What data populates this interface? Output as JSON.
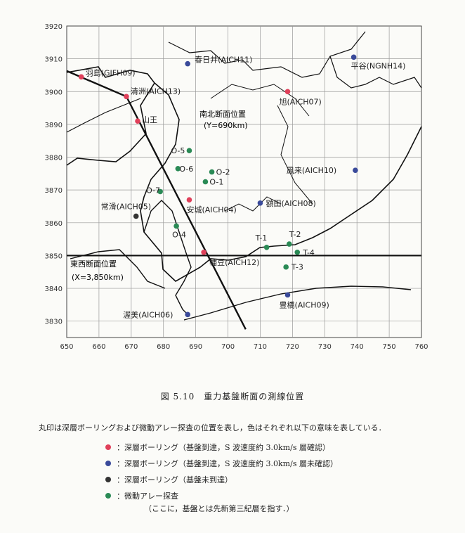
{
  "figure": {
    "caption": "図 5.10　重力基盤断面の測線位置",
    "axis": {
      "x_ticks": [
        "650",
        "660",
        "670",
        "680",
        "690",
        "700",
        "710",
        "720",
        "730",
        "740",
        "750",
        "760"
      ],
      "y_ticks": [
        "3920",
        "3910",
        "3900",
        "3890",
        "3880",
        "3870",
        "3860",
        "3850",
        "3840",
        "3830"
      ]
    },
    "sections": {
      "ns_label_1": "南北断面位置",
      "ns_label_2": "(Y=690km)",
      "ew_label_1": "東西断面位置",
      "ew_label_2": "(X=3,850km)"
    },
    "points": [
      {
        "label": "羽島(GIFH09)",
        "x": 654.5,
        "y": 3904.5,
        "color": "#e0405a"
      },
      {
        "label": "清洲(AICH13)",
        "x": 668.5,
        "y": 3898.5,
        "color": "#e0405a"
      },
      {
        "label": "山王",
        "x": 672.0,
        "y": 3891.0,
        "color": "#e0405a"
      },
      {
        "label": "旭(AICH07)",
        "x": 718.5,
        "y": 3900.0,
        "color": "#e0405a"
      },
      {
        "label": "安城(AICH04)",
        "x": 688.0,
        "y": 3867.0,
        "color": "#e0405a"
      },
      {
        "label": "幡豆(AICH12)",
        "x": 692.5,
        "y": 3851.0,
        "color": "#e0405a"
      },
      {
        "label": "春日井(AICH11)",
        "x": 687.5,
        "y": 3908.5,
        "color": "#3a4a9a"
      },
      {
        "label": "平谷(NGNH14)",
        "x": 739.0,
        "y": 3910.5,
        "color": "#3a4a9a"
      },
      {
        "label": "鳳来(AICH10)",
        "x": 739.5,
        "y": 3876.0,
        "color": "#3a4a9a"
      },
      {
        "label": "額田(AICH08)",
        "x": 710.0,
        "y": 3866.0,
        "color": "#3a4a9a"
      },
      {
        "label": "豊橋(AICH09)",
        "x": 718.5,
        "y": 3838.0,
        "color": "#3a4a9a"
      },
      {
        "label": "渥美(AICH06)",
        "x": 687.5,
        "y": 3832.0,
        "color": "#3a4a9a"
      },
      {
        "label": "常滑(AICH05)",
        "x": 671.5,
        "y": 3862.0,
        "color": "#333333"
      },
      {
        "label": "O-5",
        "x": 688.0,
        "y": 3882.0,
        "color": "#2a8a55"
      },
      {
        "label": "O-6",
        "x": 684.5,
        "y": 3876.5,
        "color": "#2a8a55"
      },
      {
        "label": "O-2",
        "x": 695.0,
        "y": 3875.5,
        "color": "#2a8a55"
      },
      {
        "label": "O-1",
        "x": 693.0,
        "y": 3872.5,
        "color": "#2a8a55"
      },
      {
        "label": "O-7",
        "x": 679.0,
        "y": 3869.5,
        "color": "#2a8a55"
      },
      {
        "label": "O-4",
        "x": 684.0,
        "y": 3859.0,
        "color": "#2a8a55"
      },
      {
        "label": "T-1",
        "x": 712.0,
        "y": 3852.5,
        "color": "#2a8a55"
      },
      {
        "label": "T-2",
        "x": 719.0,
        "y": 3853.5,
        "color": "#2a8a55"
      },
      {
        "label": "T-4",
        "x": 721.5,
        "y": 3851.0,
        "color": "#2a8a55"
      },
      {
        "label": "T-3",
        "x": 718.0,
        "y": 3846.5,
        "color": "#2a8a55"
      }
    ]
  },
  "text": {
    "description": "丸印は深層ボーリングおよび微動アレー探査の位置を表し，色はそれぞれ以下の意味を表している．",
    "note": "（ここに，基盤とは先新第三紀層を指す．）"
  },
  "legend": [
    {
      "color": "#e0405a",
      "label": "：深層ボーリング（基盤到達，S 波速度約 3.0km/s 層確認）"
    },
    {
      "color": "#3a4a9a",
      "label": "：深層ボーリング（基盤到達，S 波速度約 3.0km/s 層未確認）"
    },
    {
      "color": "#333333",
      "label": "：深層ボーリング（基盤未到達）"
    },
    {
      "color": "#2a8a55",
      "label": "：微動アレー探査"
    }
  ]
}
